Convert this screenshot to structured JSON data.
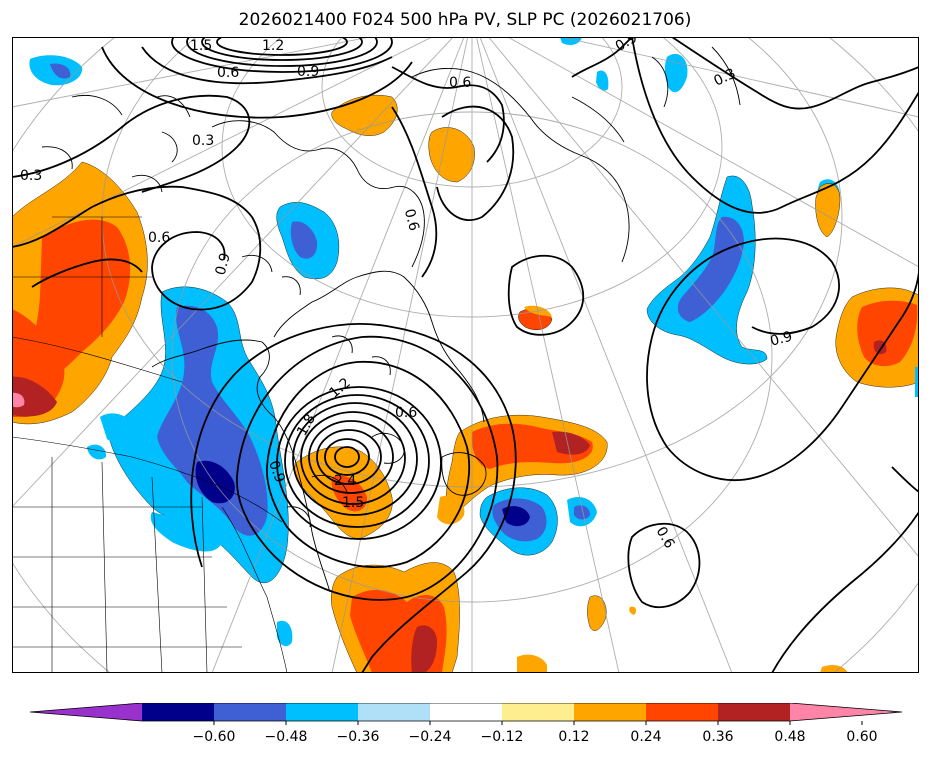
{
  "figure": {
    "title": "2026021400 F024 500 hPa PV, SLP PC (2026021706)"
  },
  "colorbar": {
    "colors": [
      "#9932cc",
      "#00008b",
      "#3f5fd4",
      "#00bfff",
      "#b0e0f8",
      "#ffffff",
      "#ffee90",
      "#ffa500",
      "#ff4500",
      "#b22222",
      "#ff85a8"
    ],
    "ticks": [
      "−0.60",
      "−0.48",
      "−0.36",
      "−0.24",
      "−0.12",
      "0.12",
      "0.24",
      "0.36",
      "0.48",
      "0.60"
    ]
  },
  "contour_labels": [
    "1.5",
    "1.2",
    "0.9",
    "0.6",
    "0.3",
    "1.8",
    "2.1",
    "2.4"
  ]
}
